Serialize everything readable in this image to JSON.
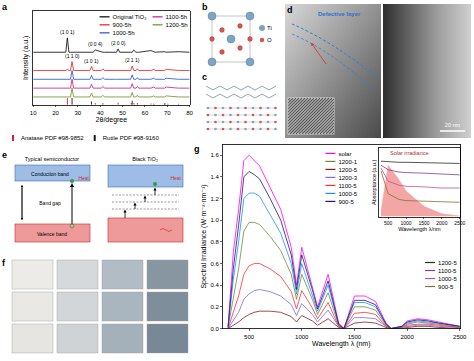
{
  "panel_labels": [
    "a",
    "b",
    "c",
    "d",
    "e",
    "f",
    "g"
  ],
  "chart_data": [
    {
      "type": "line",
      "xlabel": "2θ/degree",
      "ylabel": "Intensity (a.u.)",
      "xlim": [
        10,
        80
      ],
      "xticks": [
        10,
        20,
        30,
        40,
        50,
        60,
        70,
        80
      ],
      "ylim": [
        0,
        170
      ],
      "tick_labels": "x",
      "legend": "upper right",
      "x": [
        10,
        24.6,
        25.3,
        26.0,
        26.7,
        27.4,
        28.1,
        35.4,
        36.1,
        36.8,
        37.8,
        40.5,
        41.2,
        41.9,
        47.3,
        48.0,
        48.7,
        53.6,
        54.3,
        55.0,
        56.0,
        56.6,
        57.2,
        62.7,
        64.0,
        64.6,
        68.8,
        69.5,
        75.0,
        80
      ],
      "series": [
        {
          "name": "Original TiO₂",
          "color": "#000000",
          "values": [
            95,
            95,
            121,
            95,
            95,
            95,
            95,
            95,
            95,
            95,
            99,
            95,
            95,
            95,
            95,
            101,
            95,
            95,
            95,
            99,
            95,
            95,
            95,
            98,
            95,
            95,
            96,
            95,
            96,
            95
          ]
        },
        {
          "name": "900-5h",
          "color": "#e41a1c",
          "values": [
            62,
            62,
            64,
            62,
            62,
            78,
            62,
            62,
            69,
            62,
            62,
            62,
            65,
            62,
            62,
            62,
            62,
            62,
            70,
            62,
            62,
            65,
            62,
            62,
            64,
            62,
            62,
            64,
            62,
            62
          ]
        },
        {
          "name": "1000-5h",
          "color": "#1f4fd6",
          "values": [
            46,
            46,
            46,
            46,
            46,
            62,
            46,
            46,
            53,
            46,
            46,
            46,
            49,
            46,
            46,
            46,
            46,
            46,
            54,
            46,
            46,
            49,
            46,
            46,
            48,
            46,
            46,
            48,
            46,
            46
          ]
        },
        {
          "name": "1100-5h",
          "color": "#c71585",
          "values": [
            30,
            30,
            30,
            30,
            30,
            46,
            30,
            30,
            37,
            30,
            30,
            30,
            33,
            30,
            30,
            30,
            30,
            30,
            38,
            30,
            30,
            33,
            30,
            30,
            32,
            30,
            30,
            32,
            30,
            30
          ]
        },
        {
          "name": "1200-5h",
          "color": "#6b8e23",
          "values": [
            14,
            14,
            14,
            14,
            14,
            30,
            14,
            14,
            21,
            14,
            14,
            14,
            17,
            14,
            14,
            14,
            14,
            14,
            22,
            14,
            14,
            17,
            14,
            14,
            16,
            14,
            14,
            16,
            14,
            14
          ]
        },
        {
          "name": "Anatase PDF #98-9852",
          "type": "bar",
          "color": "#d62728",
          "x": [
            25.3,
            37.8,
            48.0,
            53.9,
            55.1,
            62.7,
            68.8,
            70.3,
            75.0
          ],
          "values": [
            12,
            3,
            4,
            3,
            3,
            2,
            1.5,
            1.5,
            1.5
          ]
        },
        {
          "name": "Rutile PDF #98-9160",
          "type": "bar",
          "color": "#1a1a1a",
          "x": [
            27.4,
            36.1,
            41.2,
            54.3,
            56.6,
            64.0,
            69.0
          ],
          "values": [
            12,
            6,
            2.5,
            7,
            2.5,
            1.5,
            2.5
          ]
        }
      ],
      "annotations": [
        {
          "text": "(1 0 1)",
          "x": 25.3,
          "y": 121
        },
        {
          "text": "(0 0 4)",
          "x": 37.8,
          "y": 99
        },
        {
          "text": "(2 0 0)",
          "x": 48.0,
          "y": 101
        },
        {
          "text": "(1 1 0)",
          "x": 27.4,
          "y": 78
        },
        {
          "text": "(1 0 1)",
          "x": 36.1,
          "y": 69
        },
        {
          "text": "(2 1 1)",
          "x": 54.3,
          "y": 70
        }
      ]
    },
    {
      "type": "line",
      "xlabel": "Wavelength λ (nm)",
      "ylabel": "Spectral Irradiance (W·m⁻²·nm⁻¹)",
      "xlim": [
        250,
        2500
      ],
      "xticks": [
        500,
        1000,
        1500,
        2000,
        2500
      ],
      "ylim": [
        0,
        1.7
      ],
      "yticks": [
        {
          "value": 0,
          "label": "0.0"
        },
        0.2,
        0.4,
        0.6,
        0.8,
        {
          "value": 1,
          "label": "1.0"
        },
        1.2,
        1.4,
        1.6
      ],
      "legend": "upper center",
      "x": [
        300,
        350,
        400,
        450,
        500,
        550,
        600,
        700,
        800,
        900,
        950,
        1000,
        1100,
        1150,
        1250,
        1350,
        1400,
        1500,
        1600,
        1700,
        1800,
        1850,
        1950,
        2000,
        2100,
        2200,
        2300,
        2500
      ],
      "series": [
        {
          "name": "solar",
          "color": "#ff00ff",
          "values": [
            0.02,
            0.7,
            1.1,
            1.55,
            1.6,
            1.55,
            1.5,
            1.3,
            1.1,
            0.75,
            0.4,
            0.75,
            0.4,
            0.2,
            0.5,
            0.05,
            0.0,
            0.3,
            0.3,
            0.25,
            0.05,
            0.0,
            0.02,
            0.07,
            0.09,
            0.08,
            0.06,
            0.02
          ]
        },
        {
          "name": "1200-1",
          "color": "#6e8b3d",
          "values": [
            0.01,
            0.3,
            0.55,
            0.9,
            0.98,
            0.98,
            0.96,
            0.85,
            0.72,
            0.5,
            0.27,
            0.5,
            0.27,
            0.13,
            0.33,
            0.03,
            0.0,
            0.2,
            0.2,
            0.17,
            0.03,
            0.0,
            0.01,
            0.04,
            0.06,
            0.05,
            0.04,
            0.01
          ]
        },
        {
          "name": "1200-5",
          "color": "#8b1a1a",
          "values": [
            0.0,
            0.03,
            0.06,
            0.1,
            0.13,
            0.15,
            0.16,
            0.16,
            0.15,
            0.11,
            0.06,
            0.12,
            0.07,
            0.03,
            0.09,
            0.01,
            0.0,
            0.05,
            0.06,
            0.05,
            0.01,
            0.0,
            0.0,
            0.01,
            0.02,
            0.02,
            0.01,
            0.0
          ]
        },
        {
          "name": "1200-3",
          "color": "#7b68ee",
          "values": [
            0.0,
            0.08,
            0.15,
            0.27,
            0.32,
            0.35,
            0.36,
            0.34,
            0.3,
            0.22,
            0.12,
            0.23,
            0.13,
            0.06,
            0.17,
            0.02,
            0.0,
            0.1,
            0.1,
            0.09,
            0.02,
            0.0,
            0.01,
            0.02,
            0.03,
            0.03,
            0.02,
            0.01
          ]
        },
        {
          "name": "1100-5",
          "color": "#ff3030",
          "values": [
            0.0,
            0.15,
            0.3,
            0.5,
            0.58,
            0.6,
            0.6,
            0.55,
            0.48,
            0.34,
            0.18,
            0.35,
            0.19,
            0.09,
            0.24,
            0.02,
            0.0,
            0.14,
            0.15,
            0.13,
            0.02,
            0.0,
            0.01,
            0.03,
            0.04,
            0.04,
            0.03,
            0.01
          ]
        },
        {
          "name": "1000-5",
          "color": "#1e90ff",
          "values": [
            0.01,
            0.45,
            0.8,
            1.2,
            1.25,
            1.25,
            1.22,
            1.05,
            0.88,
            0.6,
            0.32,
            0.6,
            0.32,
            0.16,
            0.4,
            0.04,
            0.0,
            0.24,
            0.24,
            0.2,
            0.04,
            0.0,
            0.02,
            0.05,
            0.07,
            0.06,
            0.05,
            0.02
          ]
        },
        {
          "name": "900-5",
          "color": "#191970",
          "values": [
            0.01,
            0.55,
            0.95,
            1.4,
            1.45,
            1.42,
            1.38,
            1.2,
            1.0,
            0.68,
            0.36,
            0.68,
            0.36,
            0.18,
            0.44,
            0.04,
            0.0,
            0.26,
            0.26,
            0.22,
            0.04,
            0.0,
            0.02,
            0.06,
            0.08,
            0.07,
            0.05,
            0.02
          ]
        }
      ]
    },
    {
      "type": "line",
      "xlabel": "Wavelength λ/nm",
      "ylabel": "Absorptance (a.u.)",
      "xlim": [
        250,
        2500
      ],
      "xticks": [
        500,
        1000,
        1500,
        2000,
        2500
      ],
      "ylim": [
        0,
        1.2
      ],
      "tick_labels": "x",
      "legend": "lower right",
      "x": [
        300,
        500,
        800,
        1000,
        1500,
        2000,
        2500
      ],
      "series": [
        {
          "name": "Solar irradiance",
          "type": "area",
          "color": "#f4a6a6",
          "values": [
            0.1,
            0.9,
            0.65,
            0.45,
            0.18,
            0.05,
            0.01
          ]
        },
        {
          "name": "1200-5",
          "color": "#2b2b2b",
          "values": [
            0.97,
            0.96,
            0.95,
            0.95,
            0.94,
            0.93,
            0.93
          ]
        },
        {
          "name": "1100-5",
          "color": "#7b3fa0",
          "values": [
            0.9,
            0.82,
            0.78,
            0.77,
            0.76,
            0.74,
            0.73
          ]
        },
        {
          "name": "1000-5",
          "color": "#c0509a",
          "values": [
            0.85,
            0.62,
            0.55,
            0.53,
            0.52,
            0.5,
            0.5
          ]
        },
        {
          "name": "900-5",
          "color": "#8a6d3b",
          "values": [
            0.8,
            0.4,
            0.3,
            0.28,
            0.27,
            0.26,
            0.25
          ]
        }
      ]
    }
  ],
  "structure": {
    "atoms": [
      {
        "label": "Ti",
        "color": "#7ea6c4"
      },
      {
        "label": "O",
        "color": "#d9534f"
      }
    ]
  },
  "tem": {
    "label": "Defective layer",
    "scale_bar": "20 nm"
  },
  "band_diagram": {
    "panels": [
      {
        "title": "Typical semiconductor"
      },
      {
        "title": "Black TiO₂"
      }
    ],
    "conduction_band": "Conduction band",
    "valence_band": "Valence band",
    "band_gap": "Band gap",
    "heat": "Heat"
  },
  "samples": {
    "colors": [
      [
        "#ecebe8",
        "#d6d9db",
        "#b1bcc4",
        "#8896a2"
      ],
      [
        "#e9e8e5",
        "#d3d6d9",
        "#aab6bf",
        "#7f8e9b"
      ],
      [
        "#e6e5e2",
        "#cfd3d6",
        "#a4b0ba",
        "#788896"
      ]
    ]
  }
}
